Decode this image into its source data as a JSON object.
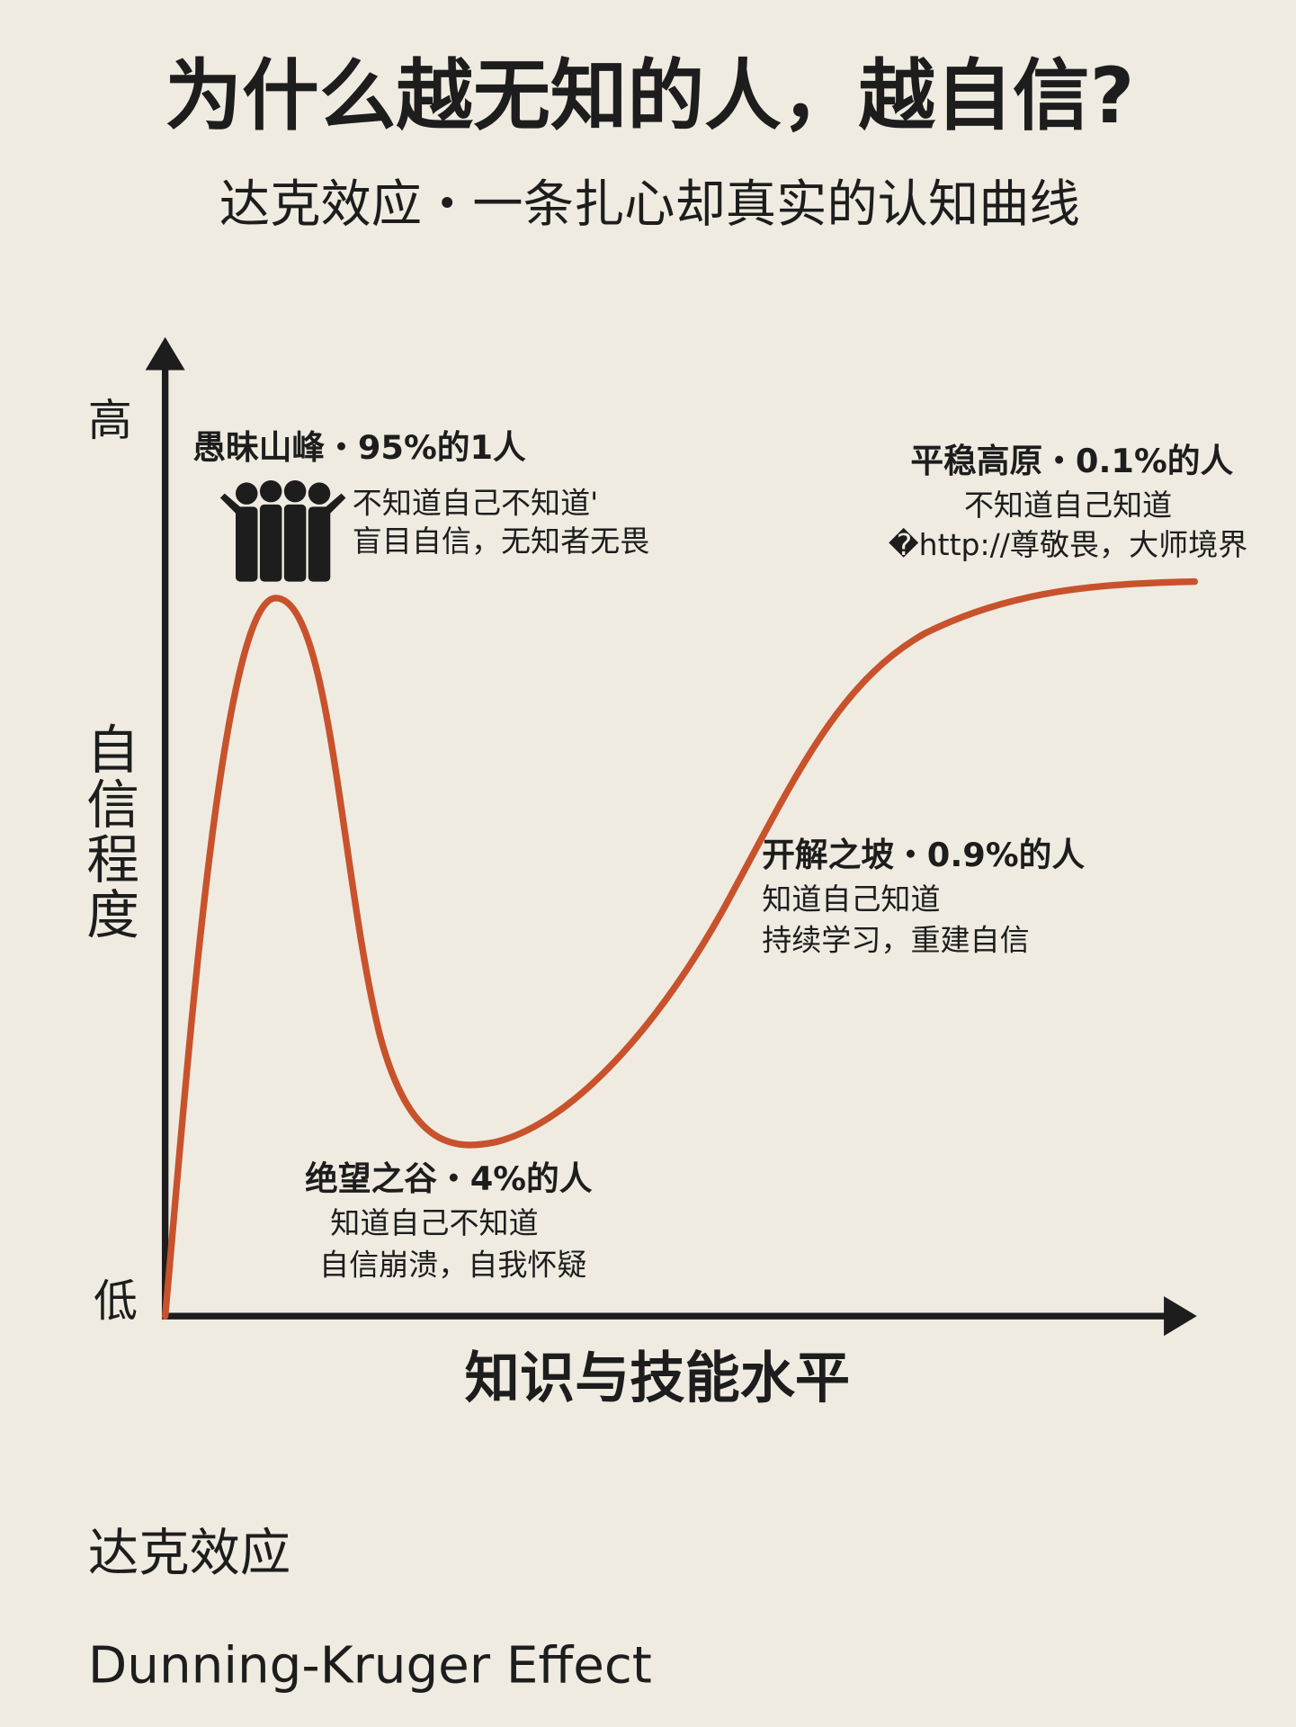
{
  "header": {
    "title": "为什么越无知的人，越自信?",
    "subtitle": "达克效应・一条扎心却真实的认知曲线"
  },
  "axes": {
    "y_high": "高",
    "y_low": "低",
    "y_label": "自信程度",
    "x_label": "知识与技能水平"
  },
  "annotations": [
    {
      "title": "愚昧山峰・95%的1人",
      "lines": [
        "不知道自己不知道'",
        "盲目自信，无知者无畏"
      ]
    },
    {
      "title": "绝望之谷・4%的人",
      "lines": [
        "知道自己不知道",
        "自信崩溃，自我怀疑"
      ]
    },
    {
      "title": "开解之坡・0.9%的人",
      "lines": [
        "知道自己知道",
        "持续学习，重建自信"
      ]
    },
    {
      "title": "平稳高原・0.1%的人",
      "lines": [
        "不知道自己知道",
        "�http://尊敬畏，大师境界"
      ]
    }
  ],
  "footer": {
    "chinese": "达克效应",
    "english": "Dunning-Kruger Effect"
  }
}
